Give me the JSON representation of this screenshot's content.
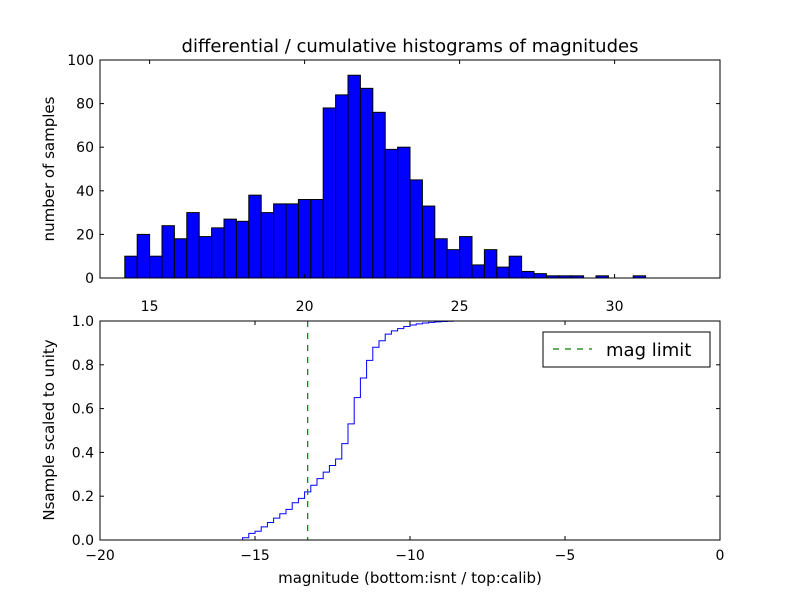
{
  "chart_data": [
    {
      "type": "bar",
      "title": "differential / cumulative histograms of magnitudes",
      "xlabel": "",
      "ylabel": "number of samples",
      "xlim": [
        13.4,
        33.4
      ],
      "ylim": [
        0,
        100
      ],
      "xticks": [
        15,
        20,
        25,
        30
      ],
      "yticks": [
        0,
        20,
        40,
        60,
        80,
        100
      ],
      "bar_color": "#0000ff",
      "bins_start": 13.8,
      "bin_width": 0.4,
      "values": [
        0,
        10,
        20,
        10,
        24,
        18,
        30,
        19,
        23,
        27,
        26,
        38,
        30,
        34,
        34,
        36,
        36,
        78,
        84,
        93,
        87,
        76,
        59,
        60,
        45,
        33,
        18,
        13,
        19,
        6,
        13,
        5,
        10,
        3,
        2,
        1,
        1,
        1,
        0,
        1,
        0,
        0,
        1
      ]
    },
    {
      "type": "line",
      "title": "",
      "xlabel": "magnitude (bottom:isnt / top:calib)",
      "ylabel": "Nsample scaled to unity",
      "xlim": [
        -20,
        0
      ],
      "ylim": [
        0,
        1.0
      ],
      "xticks": [
        -20,
        -15,
        -10,
        -5,
        0
      ],
      "xtick_labels": [
        "−20",
        "−15",
        "−10",
        "−5",
        "0"
      ],
      "yticks": [
        0.0,
        0.2,
        0.4,
        0.6,
        0.8,
        1.0
      ],
      "ytick_labels": [
        "0.0",
        "0.2",
        "0.4",
        "0.6",
        "0.8",
        "1.0"
      ],
      "line_color": "#0000ff",
      "step_start": -15.6,
      "step_width": 0.2,
      "cumulative": [
        0.0,
        0.01,
        0.03,
        0.04,
        0.06,
        0.08,
        0.1,
        0.12,
        0.14,
        0.17,
        0.19,
        0.22,
        0.25,
        0.28,
        0.31,
        0.34,
        0.37,
        0.44,
        0.53,
        0.65,
        0.74,
        0.82,
        0.88,
        0.91,
        0.94,
        0.955,
        0.965,
        0.975,
        0.982,
        0.987,
        0.991,
        0.994,
        0.996,
        0.998,
        0.999,
        1.0
      ],
      "mag_limit": -13.3,
      "mag_limit_color": "#008000",
      "legend": {
        "label": "mag limit",
        "placement": "upper right"
      }
    }
  ]
}
